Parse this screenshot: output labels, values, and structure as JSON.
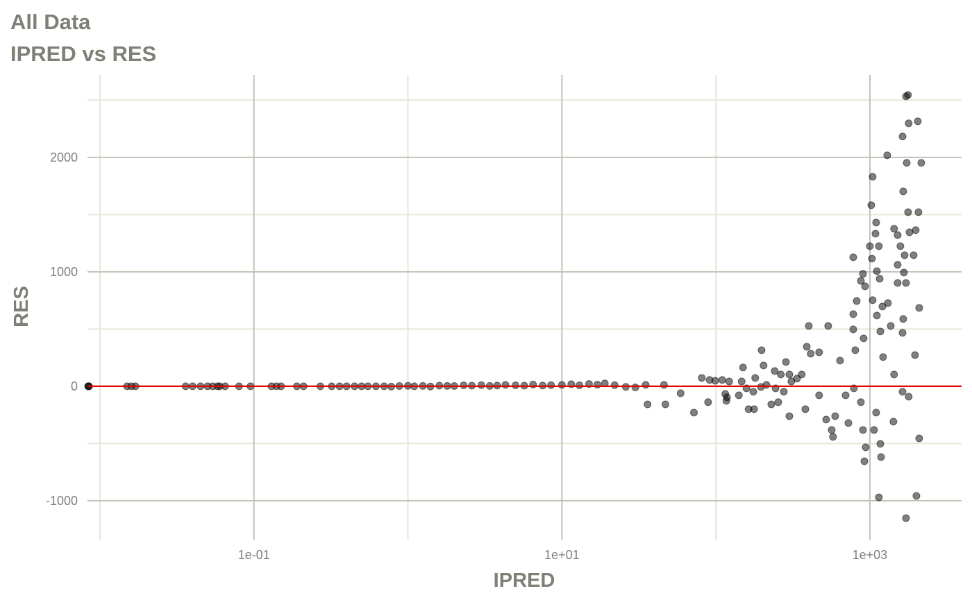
{
  "chart_data": {
    "type": "scatter",
    "title": "All Data",
    "subtitle": "IPRED vs RES",
    "x_label": "IPRED",
    "y_label": "RES",
    "xscale": "log",
    "xlim": [
      0.0083,
      3940
    ],
    "ylim": [
      -1340,
      2720
    ],
    "xticks": [
      {
        "value": 0.1,
        "label": "1e-01"
      },
      {
        "value": 10,
        "label": "1e+01"
      },
      {
        "value": 1000,
        "label": "1e+03"
      }
    ],
    "xminorticks": [
      0.01,
      1,
      100
    ],
    "yticks": [
      -1000,
      0,
      1000,
      2000
    ],
    "yminorticks": [
      -500,
      500,
      1500,
      2500
    ],
    "grid": true,
    "hline": {
      "value": 0,
      "color": "#e00000"
    },
    "series": [
      {
        "color": "#000000",
        "alpha": 0.5,
        "x": [
          0.0084,
          0.0084,
          0.0085,
          0.015,
          0.016,
          0.017,
          0.036,
          0.04,
          0.045,
          0.05,
          0.054,
          0.058,
          0.06,
          0.065,
          0.08,
          0.095,
          0.13,
          0.14,
          0.15,
          0.19,
          0.21,
          0.27,
          0.32,
          0.36,
          0.4,
          0.45,
          0.5,
          0.55,
          0.62,
          0.7,
          0.78,
          0.88,
          1,
          1.1,
          1.25,
          1.4,
          1.6,
          1.8,
          2,
          2.3,
          2.6,
          3,
          3.4,
          3.8,
          4.3,
          5,
          5.7,
          6.5,
          7.5,
          8.5,
          10,
          11.5,
          13,
          15,
          17,
          19,
          22,
          26,
          30,
          35,
          36,
          46,
          47,
          59,
          72,
          81,
          89,
          91,
          99,
          110,
          115,
          117,
          118,
          122,
          141,
          147,
          150,
          158,
          163,
          175,
          177,
          180,
          196,
          198,
          204,
          213,
          229,
          241,
          244,
          254,
          264,
          276,
          285,
          300,
          300,
          309,
          336,
          361,
          381,
          389,
          401,
          413,
          468,
          468,
          520,
          536,
          565,
          576,
          595,
          640,
          696,
          725,
          780,
          780,
          780,
          787,
          804,
          821,
          874,
          874,
          902,
          902,
          911,
          921,
          930,
          939,
          1000,
          1021,
          1031,
          1042,
          1042,
          1064,
          1087,
          1098,
          1098,
          1110,
          1110,
          1144,
          1144,
          1157,
          1169,
          1169,
          1181,
          1206,
          1218,
          1296,
          1310,
          1366,
          1422,
          1436,
          1436,
          1515,
          1515,
          1515,
          1578,
          1630,
          1630,
          1630,
          1646,
          1646,
          1663,
          1681,
          1716,
          1716,
          1716,
          1735,
          1768,
          1770,
          1786,
          1786,
          1808,
          1924,
          1963,
          1985,
          2005,
          2047,
          2068,
          2090,
          2090,
          2156
        ],
        "y": [
          0,
          0,
          0,
          0,
          0,
          0,
          0,
          0,
          0,
          0,
          0,
          0,
          0,
          0,
          0,
          0,
          0,
          0,
          0,
          0,
          0,
          0,
          0,
          0,
          0,
          0,
          0,
          0,
          0,
          0,
          -3,
          2,
          4,
          0,
          3,
          -2,
          5,
          3,
          2,
          8,
          5,
          10,
          3,
          6,
          12,
          8,
          5,
          15,
          6,
          10,
          12,
          18,
          8,
          20,
          14,
          25,
          10,
          -5,
          -10,
          12,
          -158,
          12,
          -158,
          -61,
          -230,
          73,
          -139,
          55,
          48,
          55,
          -67,
          -127,
          -97,
          42,
          -79,
          42,
          164,
          -18,
          -200,
          -48,
          -200,
          73,
          -6,
          315,
          182,
          12,
          -158,
          133,
          -18,
          -139,
          103,
          -48,
          212,
          103,
          -261,
          42,
          67,
          103,
          -200,
          345,
          527,
          285,
          297,
          -79,
          -291,
          527,
          -382,
          -442,
          -261,
          224,
          -79,
          -321,
          1127,
          630,
          497,
          -18,
          315,
          745,
          921,
          -139,
          982,
          -382,
          418,
          -655,
          873,
          -533,
          1224,
          1582,
          1115,
          752,
          1830,
          -382,
          1333,
          1430,
          -230,
          1006,
          618,
          1224,
          -970,
          939,
          479,
          -503,
          -618,
          697,
          255,
          2018,
          727,
          527,
          -309,
          1376,
          103,
          1321,
          1061,
          903,
          1224,
          2182,
          467,
          -48,
          1703,
          588,
          994,
          1145,
          2533,
          903,
          -1152,
          1952,
          2545,
          1521,
          2297,
          -91,
          1345,
          1145,
          273,
          1364,
          -958,
          2315,
          1521,
          685,
          -455,
          1952
        ]
      }
    ]
  }
}
